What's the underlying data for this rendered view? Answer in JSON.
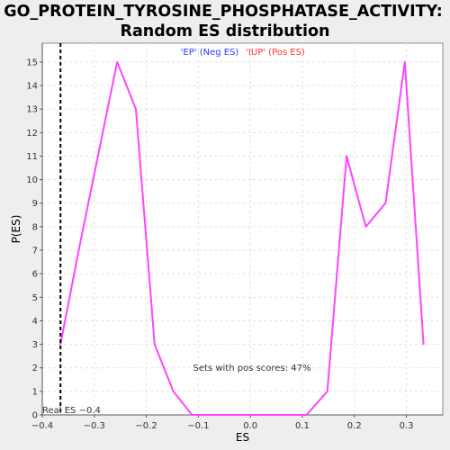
{
  "chart_data": {
    "type": "line",
    "title_line1": "GO_PROTEIN_TYROSINE_PHOSPHATASE_ACTIVITY:",
    "title_line2": "Random ES distribution",
    "xlabel": "ES",
    "ylabel": "P(ES)",
    "xlim": [
      -0.4,
      0.37
    ],
    "ylim": [
      0,
      15.8
    ],
    "xticks": [
      -0.4,
      -0.3,
      -0.2,
      -0.1,
      0.0,
      0.1,
      0.2,
      0.3
    ],
    "xtick_labels": [
      "−0.4",
      "−0.3",
      "−0.2",
      "−0.1",
      "0.0",
      "0.1",
      "0.2",
      "0.3"
    ],
    "yticks": [
      0,
      1,
      2,
      3,
      4,
      5,
      6,
      7,
      8,
      9,
      10,
      11,
      12,
      13,
      14,
      15
    ],
    "ytick_labels": [
      "0",
      "1",
      "2",
      "3",
      "4",
      "5",
      "6",
      "7",
      "8",
      "9",
      "10",
      "11",
      "12",
      "13",
      "14",
      "15"
    ],
    "grid": true,
    "series": [
      {
        "color": "#ff44ff",
        "x": [
          -0.365,
          -0.33,
          -0.293,
          -0.256,
          -0.22,
          -0.184,
          -0.148,
          -0.112,
          -0.075,
          -0.039,
          -0.003,
          0.033,
          0.07,
          0.108,
          0.148,
          0.185,
          0.222,
          0.26,
          0.297,
          0.333
        ],
        "y": [
          3,
          7,
          11,
          15,
          13,
          3,
          1,
          0,
          0,
          0,
          0,
          0,
          0,
          0,
          1,
          11,
          8,
          9,
          15,
          3
        ]
      }
    ],
    "real_es": {
      "value": -0.365,
      "label": "Real ES −0.4"
    },
    "legend": [
      {
        "label": "'EP' (Neg ES)",
        "color": "#3333ff"
      },
      {
        "label": "'IUP' (Pos ES)",
        "color": "#ff3333"
      }
    ],
    "annotation": "Sets with pos scores: 47%"
  }
}
